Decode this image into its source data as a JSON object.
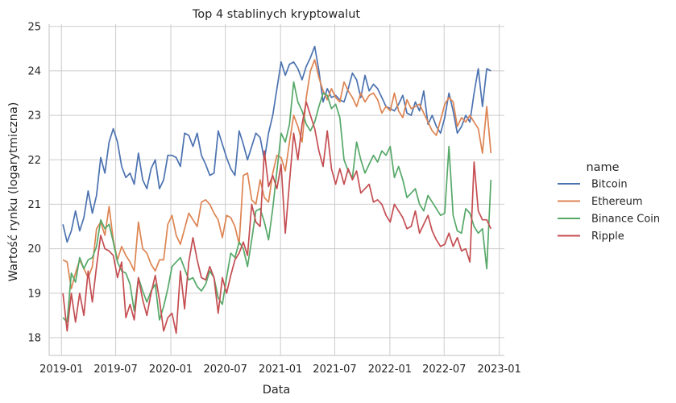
{
  "chart_data": {
    "type": "line",
    "title": "Top 4 stablinych kryptowalut",
    "xlabel": "Data",
    "ylabel": "Wartość rynku (logarytmiczna)",
    "xlim": [
      "2018-11-21",
      "2023-01-18"
    ],
    "ylim": [
      17.6,
      25.05
    ],
    "grid": true,
    "legend_position": "right",
    "legend_title": "name",
    "xticks": [
      {
        "label": "2019-01",
        "date": "2019-01-01"
      },
      {
        "label": "2019-07",
        "date": "2019-07-01"
      },
      {
        "label": "2020-01",
        "date": "2020-01-01"
      },
      {
        "label": "2020-07",
        "date": "2020-07-01"
      },
      {
        "label": "2021-01",
        "date": "2021-01-01"
      },
      {
        "label": "2021-07",
        "date": "2021-07-01"
      },
      {
        "label": "2022-01",
        "date": "2022-01-01"
      },
      {
        "label": "2022-07",
        "date": "2022-07-01"
      },
      {
        "label": "2023-01",
        "date": "2023-01-01"
      }
    ],
    "yticks": [
      18,
      19,
      20,
      21,
      22,
      23,
      24,
      25
    ],
    "x": [
      "2019-01-06",
      "2019-01-20",
      "2019-02-03",
      "2019-02-17",
      "2019-03-03",
      "2019-03-17",
      "2019-03-31",
      "2019-04-14",
      "2019-04-28",
      "2019-05-12",
      "2019-05-26",
      "2019-06-09",
      "2019-06-23",
      "2019-07-07",
      "2019-07-21",
      "2019-08-04",
      "2019-08-18",
      "2019-09-01",
      "2019-09-15",
      "2019-09-29",
      "2019-10-13",
      "2019-10-27",
      "2019-11-10",
      "2019-11-24",
      "2019-12-08",
      "2019-12-22",
      "2020-01-05",
      "2020-01-19",
      "2020-02-02",
      "2020-02-16",
      "2020-03-01",
      "2020-03-15",
      "2020-03-29",
      "2020-04-12",
      "2020-04-26",
      "2020-05-10",
      "2020-05-24",
      "2020-06-07",
      "2020-06-21",
      "2020-07-05",
      "2020-07-19",
      "2020-08-02",
      "2020-08-16",
      "2020-08-30",
      "2020-09-13",
      "2020-09-27",
      "2020-10-11",
      "2020-10-25",
      "2020-11-08",
      "2020-11-22",
      "2020-12-06",
      "2020-12-20",
      "2021-01-03",
      "2021-01-17",
      "2021-01-31",
      "2021-02-14",
      "2021-02-28",
      "2021-03-14",
      "2021-03-28",
      "2021-04-11",
      "2021-04-25",
      "2021-05-09",
      "2021-05-23",
      "2021-06-06",
      "2021-06-20",
      "2021-07-04",
      "2021-07-18",
      "2021-08-01",
      "2021-08-15",
      "2021-08-29",
      "2021-09-12",
      "2021-09-26",
      "2021-10-10",
      "2021-10-24",
      "2021-11-07",
      "2021-11-21",
      "2021-12-05",
      "2021-12-19",
      "2022-01-02",
      "2022-01-16",
      "2022-01-30",
      "2022-02-13",
      "2022-02-27",
      "2022-03-13",
      "2022-03-27",
      "2022-04-10",
      "2022-04-24",
      "2022-05-08",
      "2022-05-22",
      "2022-06-05",
      "2022-06-19",
      "2022-07-03",
      "2022-07-17",
      "2022-07-31",
      "2022-08-14",
      "2022-08-28",
      "2022-09-11",
      "2022-09-25",
      "2022-10-09",
      "2022-10-23",
      "2022-11-06",
      "2022-11-20",
      "2022-12-04"
    ],
    "series": [
      {
        "name": "Bitcoin",
        "color": "#4c72b0",
        "values": [
          20.55,
          20.15,
          20.4,
          20.85,
          20.4,
          20.7,
          21.3,
          20.8,
          21.2,
          22.05,
          21.7,
          22.4,
          22.7,
          22.4,
          21.85,
          21.6,
          21.7,
          21.45,
          22.15,
          21.55,
          21.35,
          21.8,
          22.0,
          21.35,
          21.55,
          22.1,
          22.1,
          22.05,
          21.85,
          22.6,
          22.55,
          22.3,
          22.6,
          22.1,
          21.9,
          21.65,
          21.7,
          22.65,
          22.35,
          22.05,
          21.8,
          21.65,
          22.65,
          22.35,
          22.0,
          22.3,
          22.6,
          22.5,
          22.0,
          22.6,
          23.0,
          23.6,
          24.2,
          23.9,
          24.15,
          24.2,
          24.05,
          23.8,
          24.1,
          24.3,
          24.55,
          24.0,
          23.3,
          23.6,
          23.4,
          23.45,
          23.35,
          23.3,
          23.6,
          23.95,
          23.8,
          23.4,
          23.9,
          23.55,
          23.7,
          23.6,
          23.4,
          23.2,
          23.15,
          23.1,
          23.25,
          23.45,
          23.05,
          23.0,
          23.3,
          23.1,
          23.55,
          22.8,
          23.0,
          22.75,
          22.6,
          22.95,
          23.5,
          23.1,
          22.6,
          22.75,
          23.0,
          22.85,
          23.5,
          24.05,
          23.2,
          24.05,
          24.0
        ]
      },
      {
        "name": "Ethereum",
        "color": "#dd8452",
        "values": [
          19.75,
          19.7,
          19.1,
          19.45,
          19.75,
          19.55,
          19.35,
          19.6,
          20.45,
          20.6,
          20.3,
          20.95,
          20.2,
          19.75,
          20.05,
          19.85,
          19.7,
          19.5,
          20.6,
          20.0,
          19.9,
          19.65,
          19.5,
          19.75,
          19.75,
          20.55,
          20.75,
          20.3,
          20.1,
          20.45,
          20.8,
          20.65,
          20.5,
          21.05,
          21.1,
          21.0,
          20.8,
          20.65,
          20.25,
          20.75,
          20.7,
          20.5,
          20.1,
          21.65,
          21.7,
          21.1,
          21.0,
          21.55,
          21.15,
          21.05,
          21.7,
          22.1,
          22.05,
          21.75,
          22.4,
          23.0,
          22.75,
          22.4,
          23.4,
          24.0,
          24.25,
          23.85,
          23.55,
          23.35,
          23.6,
          23.4,
          23.3,
          23.75,
          23.55,
          23.4,
          23.2,
          23.5,
          23.3,
          23.45,
          23.5,
          23.35,
          23.05,
          23.2,
          23.1,
          23.5,
          23.1,
          22.95,
          23.35,
          23.15,
          23.2,
          23.25,
          23.05,
          22.85,
          22.65,
          22.55,
          22.9,
          23.25,
          23.4,
          23.3,
          22.75,
          22.95,
          22.85,
          23.0,
          22.85,
          22.7,
          22.15,
          23.2,
          22.15
        ]
      },
      {
        "name": "Binance Coin",
        "color": "#55a868",
        "values": [
          18.45,
          18.35,
          19.45,
          19.25,
          19.8,
          19.55,
          19.75,
          19.8,
          20.05,
          20.65,
          20.45,
          20.55,
          20.15,
          19.7,
          19.5,
          19.45,
          19.2,
          18.6,
          19.35,
          19.05,
          18.8,
          19.05,
          19.2,
          18.4,
          18.7,
          19.1,
          19.6,
          19.7,
          19.8,
          19.55,
          19.3,
          19.35,
          19.15,
          19.05,
          19.2,
          19.5,
          19.35,
          18.9,
          18.75,
          19.35,
          19.9,
          19.8,
          20.15,
          20.0,
          19.6,
          20.2,
          20.85,
          20.9,
          20.6,
          20.2,
          20.9,
          21.75,
          22.6,
          22.4,
          22.8,
          23.75,
          23.3,
          23.1,
          22.8,
          22.65,
          22.85,
          23.2,
          23.5,
          23.45,
          23.15,
          23.25,
          22.95,
          22.0,
          21.75,
          21.6,
          22.4,
          22.0,
          21.7,
          21.9,
          22.1,
          21.95,
          22.2,
          22.1,
          22.3,
          21.6,
          21.85,
          21.55,
          21.15,
          21.25,
          21.35,
          21.0,
          20.85,
          21.2,
          21.05,
          20.9,
          20.75,
          20.8,
          22.3,
          20.75,
          20.4,
          20.35,
          20.9,
          20.8,
          20.5,
          20.35,
          20.45,
          19.55,
          21.55
        ]
      },
      {
        "name": "Ripple",
        "color": "#c44e52",
        "values": [
          19.0,
          18.15,
          19.0,
          18.35,
          19.0,
          18.5,
          19.5,
          18.8,
          19.6,
          20.3,
          20.0,
          19.95,
          19.85,
          19.35,
          19.7,
          18.45,
          18.75,
          18.4,
          19.35,
          18.85,
          18.5,
          19.0,
          19.4,
          18.85,
          18.15,
          18.45,
          18.55,
          18.1,
          19.5,
          18.65,
          19.7,
          20.25,
          19.75,
          19.35,
          19.3,
          19.6,
          19.35,
          18.55,
          19.35,
          19.0,
          19.4,
          19.75,
          19.9,
          20.15,
          19.85,
          21.0,
          20.6,
          20.5,
          22.2,
          21.4,
          21.65,
          21.35,
          21.9,
          20.35,
          21.5,
          22.6,
          22.0,
          22.8,
          23.3,
          23.0,
          22.7,
          22.2,
          21.85,
          22.65,
          21.8,
          21.45,
          21.8,
          21.45,
          21.8,
          21.55,
          21.75,
          21.25,
          21.35,
          21.45,
          21.05,
          21.1,
          21.0,
          20.75,
          20.6,
          21.0,
          20.85,
          20.7,
          20.45,
          20.5,
          20.85,
          20.35,
          20.55,
          20.75,
          20.4,
          20.2,
          20.05,
          20.1,
          20.35,
          20.05,
          20.25,
          19.95,
          20.0,
          19.7,
          21.95,
          20.85,
          20.65,
          20.65,
          20.45
        ]
      }
    ]
  }
}
